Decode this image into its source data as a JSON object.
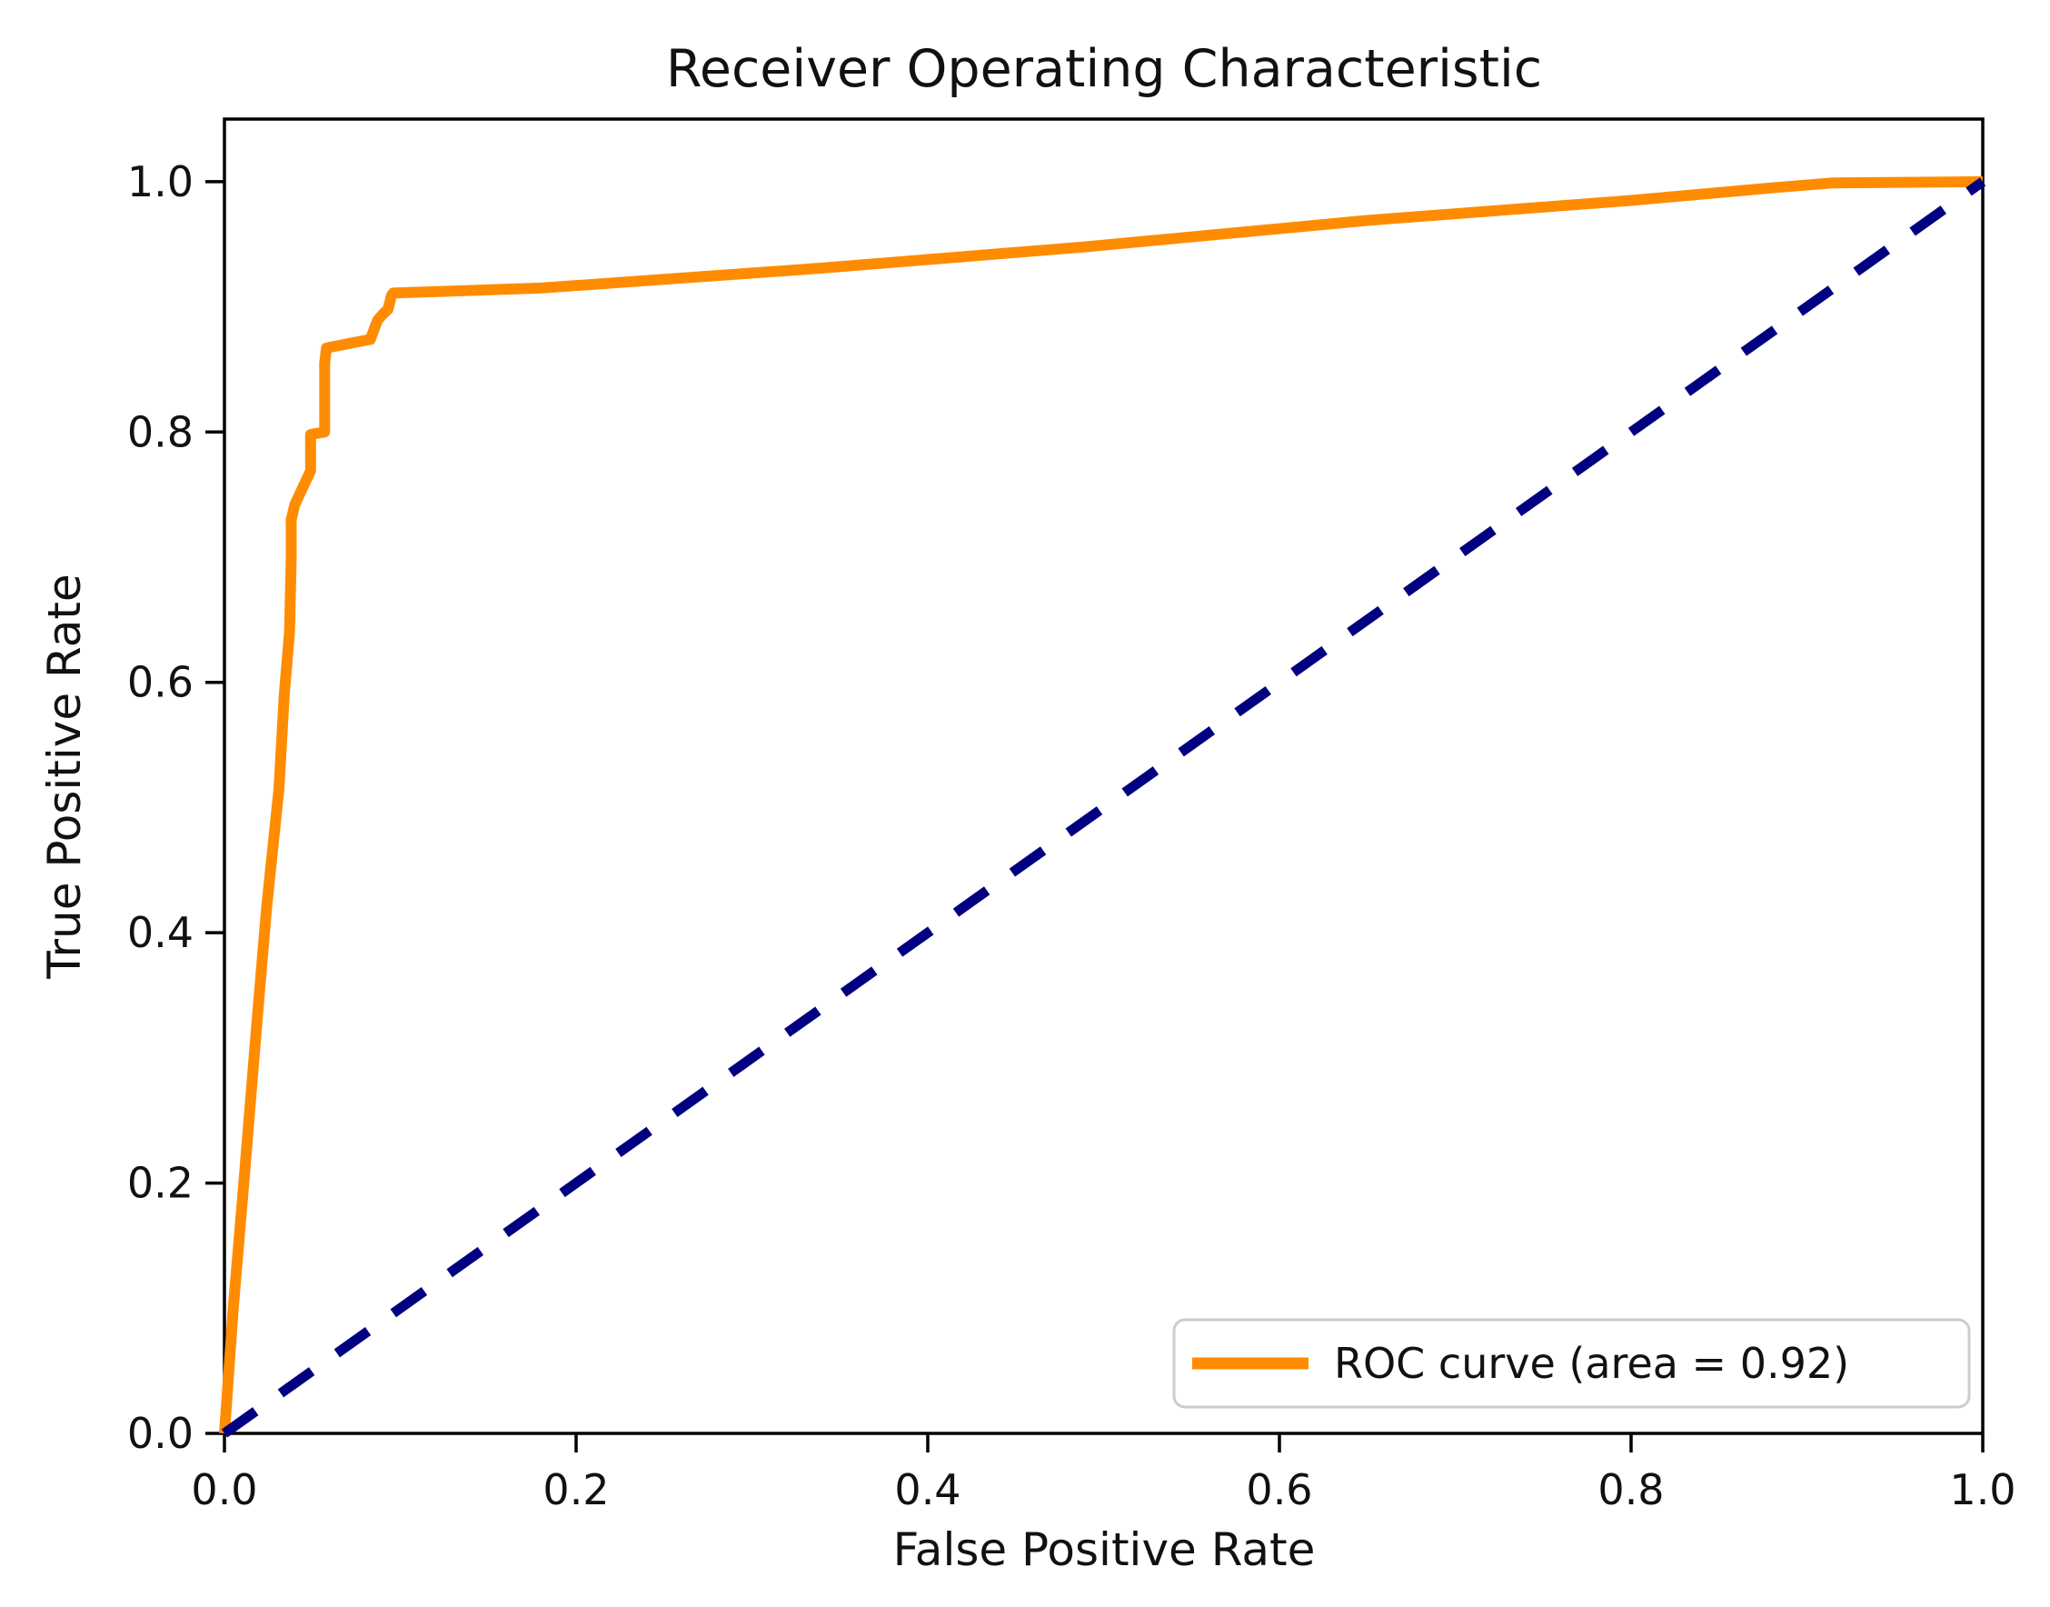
{
  "figure": {
    "title": "Receiver Operating Characteristic",
    "xlabel": "False Positive Rate",
    "ylabel": "True Positive Rate"
  },
  "legend": {
    "position": "lower right",
    "entries": [
      {
        "label": "ROC curve (area = 0.92)",
        "color": "#FF8C00",
        "style": "solid"
      }
    ]
  },
  "colors": {
    "roc_curve": "#FF8C00",
    "chance_line": "#000080",
    "axes": "#000000",
    "legend_border": "#cccccc",
    "background": "#ffffff"
  },
  "chart_data": {
    "type": "line",
    "title": "Receiver Operating Characteristic",
    "xlabel": "False Positive Rate",
    "ylabel": "True Positive Rate",
    "xlim": [
      0.0,
      1.0
    ],
    "ylim": [
      0.0,
      1.05
    ],
    "x_ticks": [
      "0.0",
      "0.2",
      "0.4",
      "0.6",
      "0.8",
      "1.0"
    ],
    "y_ticks": [
      "0.0",
      "0.2",
      "0.4",
      "0.6",
      "0.8",
      "1.0"
    ],
    "grid": false,
    "legend_position": "lower right",
    "auc": 0.92,
    "series": [
      {
        "name": "ROC curve (area = 0.92)",
        "color": "#FF8C00",
        "style": "solid",
        "x": [
          0.0,
          0.005,
          0.011,
          0.018,
          0.024,
          0.031,
          0.034,
          0.037,
          0.038,
          0.038,
          0.04,
          0.049,
          0.049,
          0.057,
          0.057,
          0.058,
          0.061,
          0.083,
          0.087,
          0.09,
          0.093,
          0.095,
          0.096,
          0.18,
          0.34,
          0.49,
          0.65,
          0.8,
          0.88,
          0.915,
          1.0
        ],
        "y": [
          0.0,
          0.1,
          0.2,
          0.32,
          0.42,
          0.515,
          0.59,
          0.64,
          0.7,
          0.73,
          0.742,
          0.769,
          0.798,
          0.8,
          0.855,
          0.867,
          0.868,
          0.874,
          0.889,
          0.894,
          0.898,
          0.909,
          0.911,
          0.915,
          0.931,
          0.948,
          0.969,
          0.985,
          0.995,
          0.999,
          1.0
        ]
      },
      {
        "name": "chance diagonal",
        "color": "#000080",
        "style": "dashed",
        "x": [
          0.0,
          1.0
        ],
        "y": [
          0.0,
          1.0
        ]
      }
    ]
  }
}
